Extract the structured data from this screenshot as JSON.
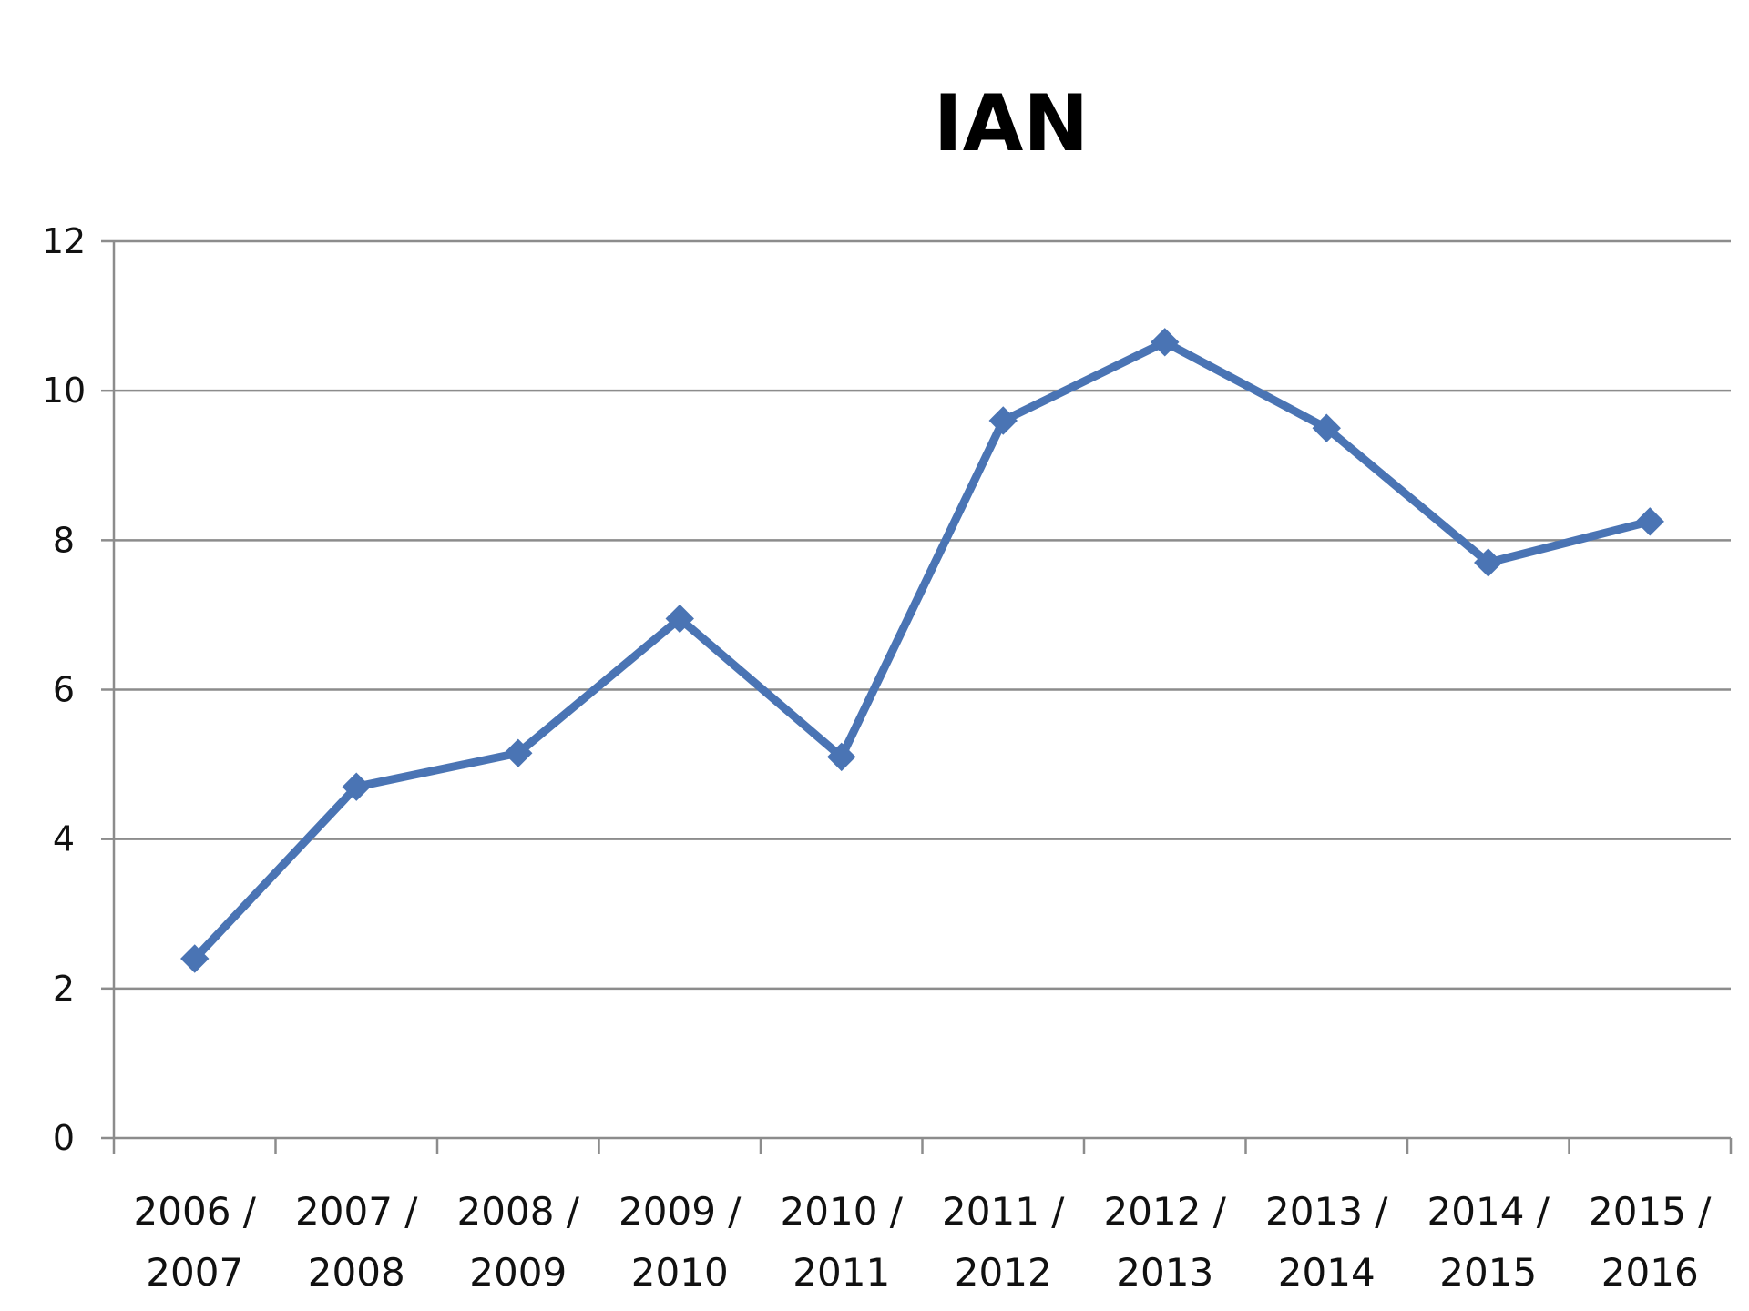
{
  "chart_data": {
    "type": "line",
    "title": "IAN",
    "xlabel": "",
    "ylabel": "",
    "ylim": [
      0,
      12
    ],
    "yticks": [
      "0",
      "2",
      "4",
      "6",
      "8",
      "10",
      "12"
    ],
    "grid": true,
    "legend": "none",
    "categories": [
      [
        "2006 /",
        "2007"
      ],
      [
        "2007 /",
        "2008"
      ],
      [
        "2008 /",
        "2009"
      ],
      [
        "2009 /",
        "2010"
      ],
      [
        "2010 /",
        "2011"
      ],
      [
        "2011 /",
        "2012"
      ],
      [
        "2012 /",
        "2013"
      ],
      [
        "2013 /",
        "2014"
      ],
      [
        "2014 /",
        "2015"
      ],
      [
        "2015 /",
        "2016"
      ]
    ],
    "series": [
      {
        "values": [
          2.4,
          4.7,
          5.15,
          6.95,
          5.1,
          9.6,
          10.65,
          9.5,
          7.7,
          8.25
        ],
        "color": "#4a74b4",
        "marker": "diamond"
      }
    ]
  }
}
